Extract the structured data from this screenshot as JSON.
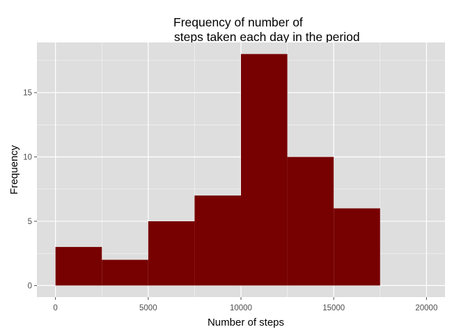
{
  "chart_data": {
    "type": "bar",
    "title_lines": [
      "Frequency of number of",
      "steps taken each day in the period"
    ],
    "xlabel": "Number of steps",
    "ylabel": "Frequency",
    "bin_width": 2500,
    "bins": [
      {
        "start": 0,
        "end": 2500,
        "count": 3
      },
      {
        "start": 2500,
        "end": 5000,
        "count": 2
      },
      {
        "start": 5000,
        "end": 7500,
        "count": 5
      },
      {
        "start": 7500,
        "end": 10000,
        "count": 7
      },
      {
        "start": 10000,
        "end": 12500,
        "count": 18
      },
      {
        "start": 12500,
        "end": 15000,
        "count": 10
      },
      {
        "start": 15000,
        "end": 17500,
        "count": 6
      }
    ],
    "xlim": [
      -1000,
      21000
    ],
    "ylim": [
      -0.9,
      18.9
    ],
    "x_ticks": [
      0,
      5000,
      10000,
      15000,
      20000
    ],
    "x_tick_labels": [
      "0",
      "5000",
      "10000",
      "15000",
      "20000"
    ],
    "y_ticks": [
      0,
      5,
      10,
      15
    ],
    "y_tick_labels": [
      "0",
      "5",
      "10",
      "15"
    ],
    "grid": true,
    "bar_color": "#770000",
    "panel_color": "#dedede",
    "grid_color": "#ffffff"
  }
}
